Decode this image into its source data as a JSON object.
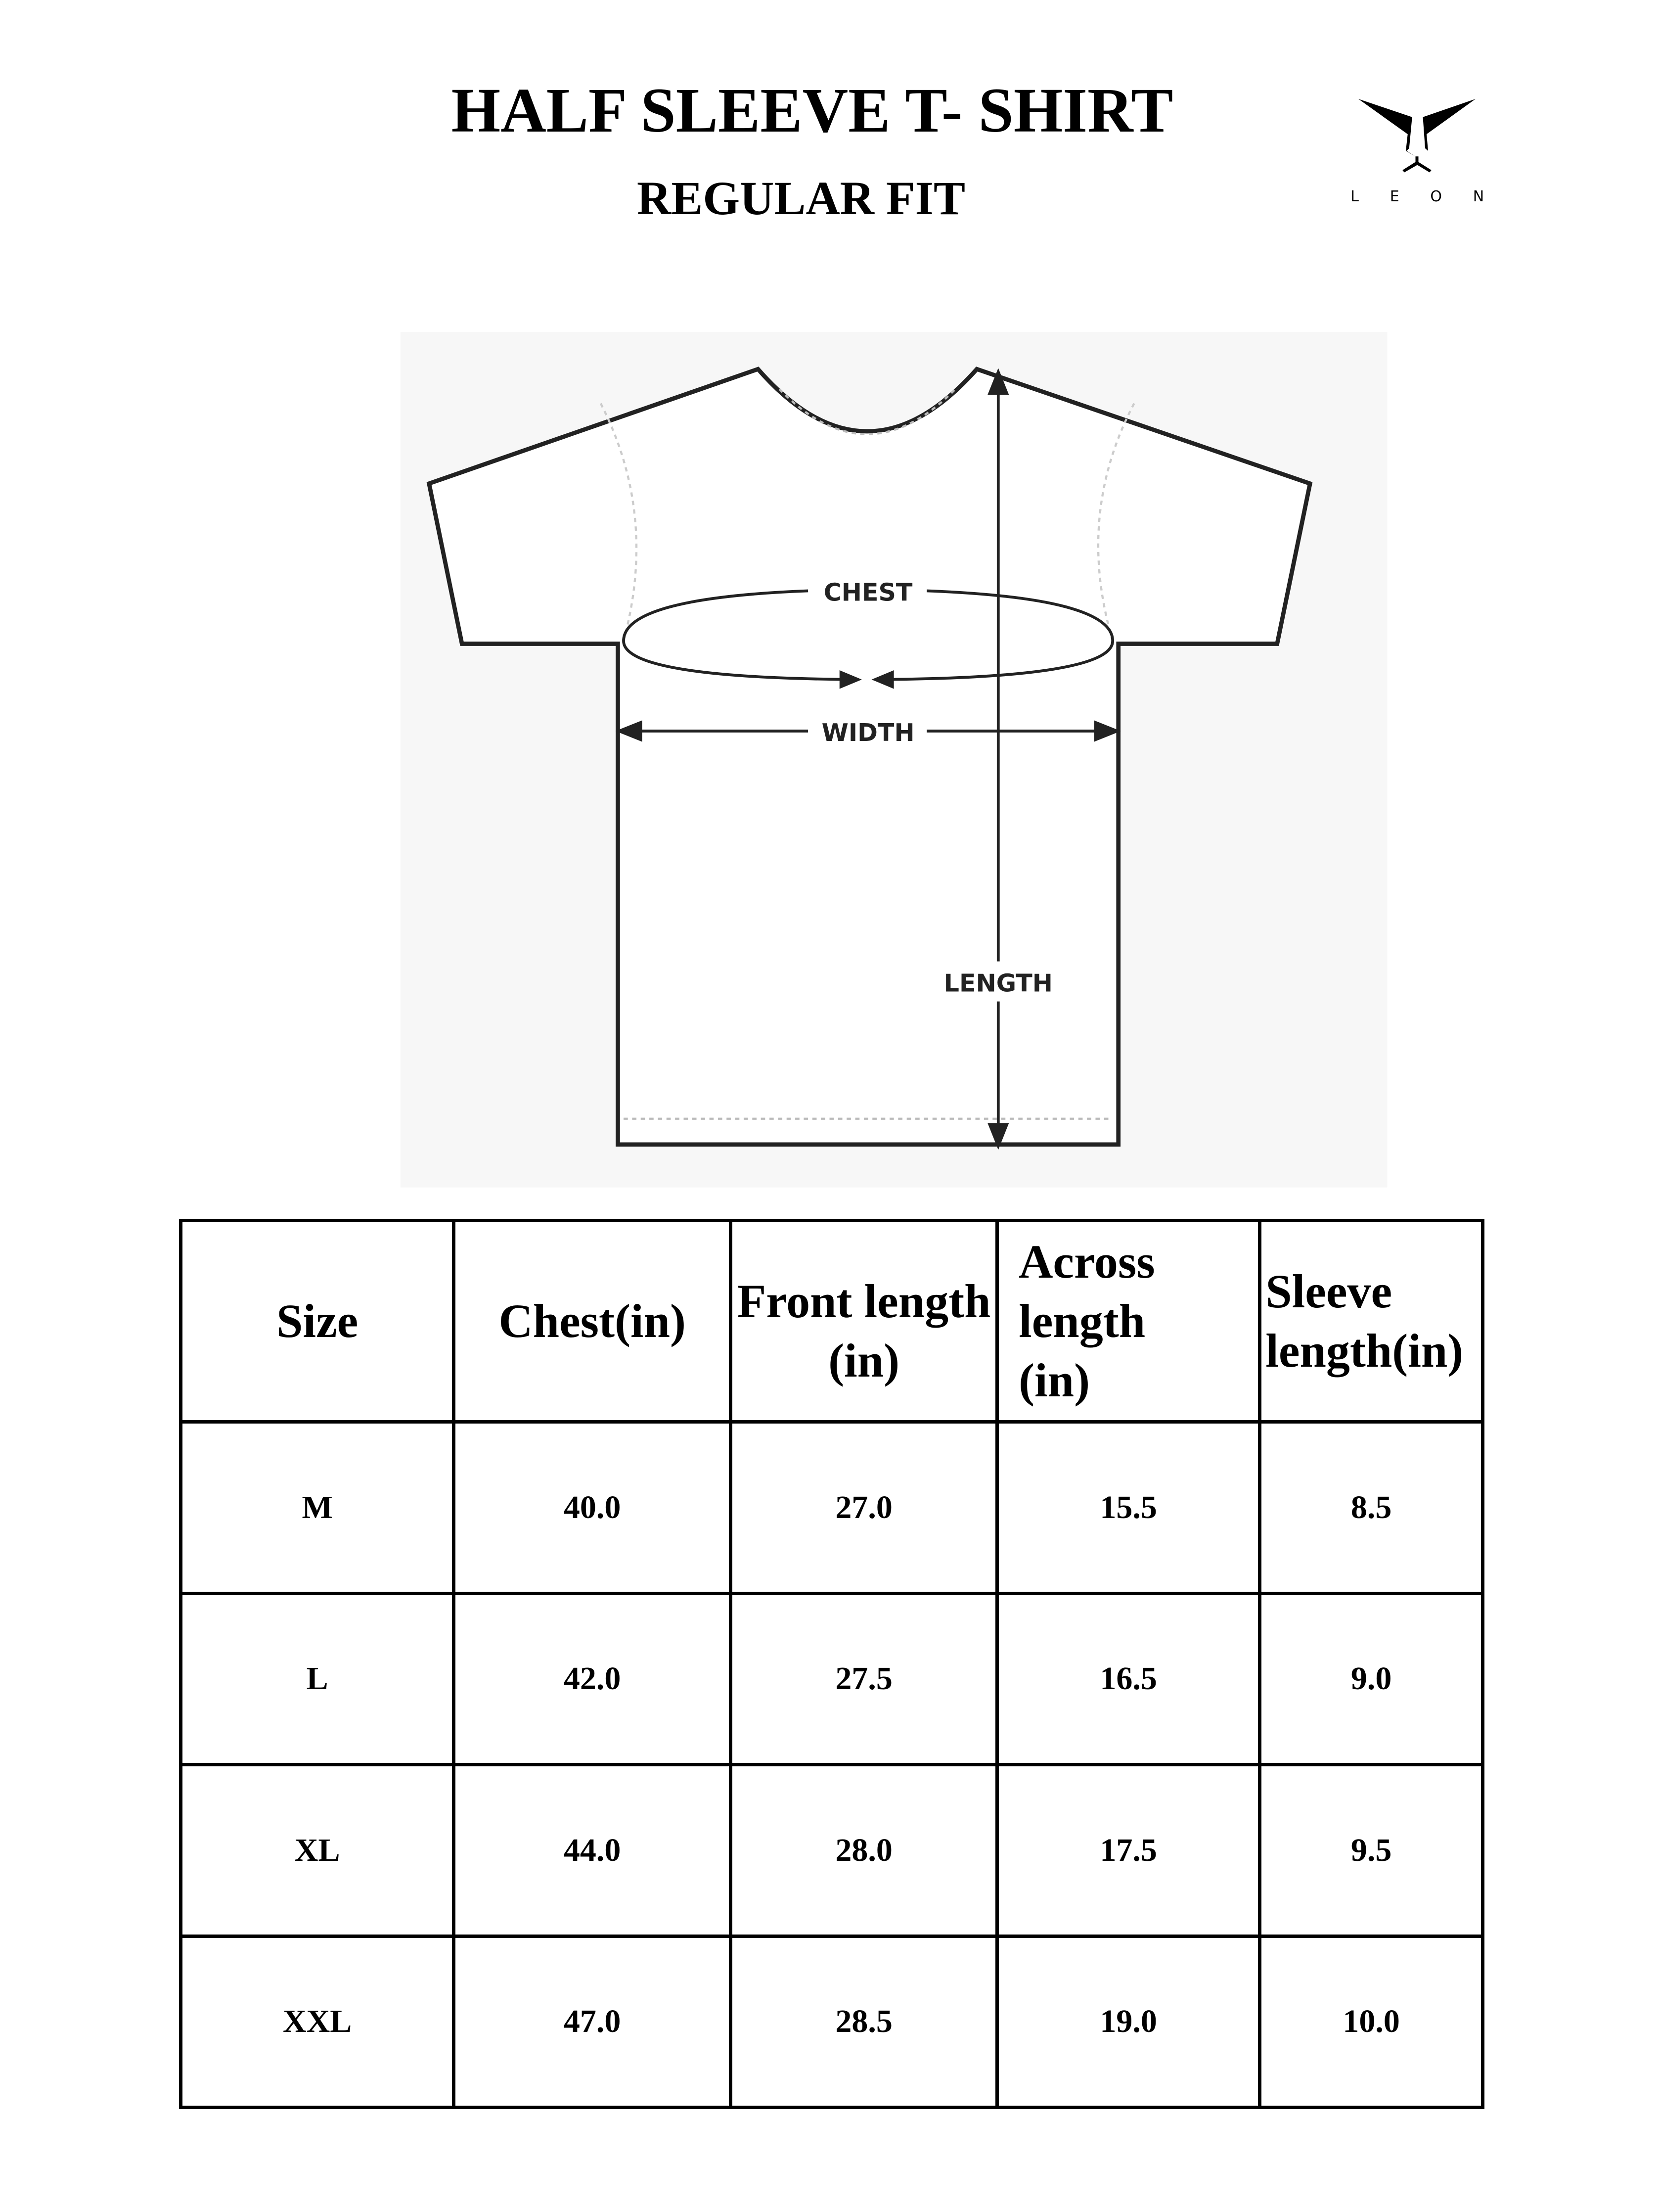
{
  "header": {
    "title": "HALF SLEEVE T- SHIRT",
    "subtitle": "REGULAR FIT",
    "brand": "LEON"
  },
  "diagram": {
    "labels": {
      "chest": "CHEST",
      "width": "WIDTH",
      "length": "LENGTH"
    }
  },
  "size_table": {
    "headers": [
      "Size",
      "Chest(in)",
      "Front length (in)",
      "Across length (in)",
      "Sleeve length(in)"
    ],
    "rows": [
      [
        "M",
        "40.0",
        "27.0",
        "15.5",
        "8.5"
      ],
      [
        "L",
        "42.0",
        "27.5",
        "16.5",
        "9.0"
      ],
      [
        "XL",
        "44.0",
        "28.0",
        "17.5",
        "9.5"
      ],
      [
        "XXL",
        "47.0",
        "28.5",
        "19.0",
        "10.0"
      ]
    ]
  }
}
